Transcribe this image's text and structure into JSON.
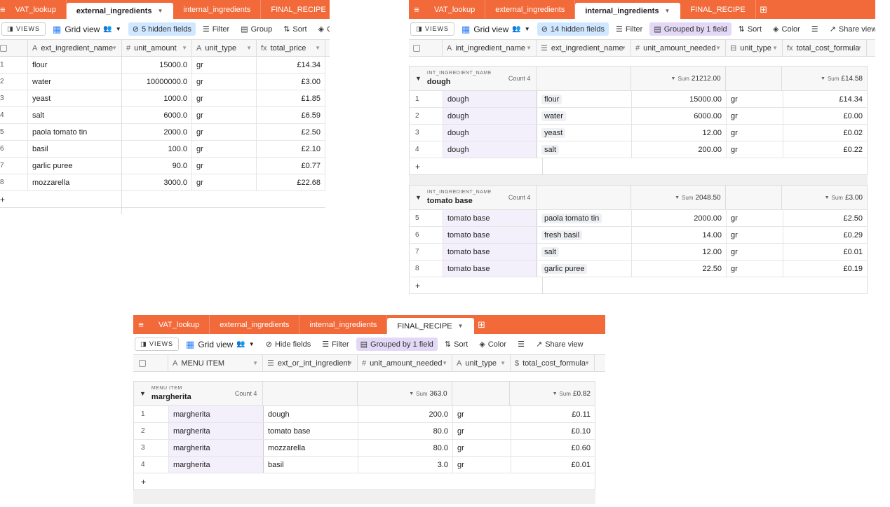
{
  "tabs": [
    "VAT_lookup",
    "external_ingredients",
    "internal_ingredients",
    "FINAL_RECIPE"
  ],
  "toolbar": {
    "views": "VIEWS",
    "grid_view": "Grid view",
    "filter": "Filter",
    "group": "Group",
    "sort": "Sort",
    "color": "Color",
    "share_view": "Share view",
    "hide_fields": "Hide fields",
    "grouped_by": "Grouped by 1 field"
  },
  "external": {
    "hidden_fields": "5 hidden fields",
    "columns": [
      "ext_ingredient_name",
      "unit_amount",
      "unit_type",
      "total_price"
    ],
    "rows": [
      {
        "n": "1",
        "name": "flour",
        "amount": "15000.0",
        "type": "gr",
        "price": "£14.34"
      },
      {
        "n": "2",
        "name": "water",
        "amount": "10000000.0",
        "type": "gr",
        "price": "£3.00"
      },
      {
        "n": "3",
        "name": "yeast",
        "amount": "1000.0",
        "type": "gr",
        "price": "£1.85"
      },
      {
        "n": "4",
        "name": "salt",
        "amount": "6000.0",
        "type": "gr",
        "price": "£6.59"
      },
      {
        "n": "5",
        "name": "paola tomato tin",
        "amount": "2000.0",
        "type": "gr",
        "price": "£2.50"
      },
      {
        "n": "6",
        "name": " basil",
        "amount": "100.0",
        "type": "gr",
        "price": "£2.10"
      },
      {
        "n": "7",
        "name": "garlic puree",
        "amount": "90.0",
        "type": "gr",
        "price": "£0.77"
      },
      {
        "n": "8",
        "name": "mozzarella",
        "amount": "3000.0",
        "type": "gr",
        "price": "£22.68"
      }
    ]
  },
  "internal": {
    "hidden_fields": "14 hidden fields",
    "columns": [
      "int_ingredient_name",
      "ext_ingredient_name",
      "unit_amount_needed",
      "unit_type",
      "total_cost_formula"
    ],
    "group_label": "INT_INGREDIENT_NAME",
    "groups": [
      {
        "name": "dough",
        "count": "Count 4",
        "sum_amount": "21212.00",
        "sum_cost": "£14.58",
        "rows": [
          {
            "n": "1",
            "int": "dough",
            "ext": "flour",
            "amount": "15000.00",
            "type": "gr",
            "cost": "£14.34"
          },
          {
            "n": "2",
            "int": "dough",
            "ext": "water",
            "amount": "6000.00",
            "type": "gr",
            "cost": "£0.00"
          },
          {
            "n": "3",
            "int": "dough",
            "ext": "yeast",
            "amount": "12.00",
            "type": "gr",
            "cost": "£0.02"
          },
          {
            "n": "4",
            "int": "dough",
            "ext": "salt",
            "amount": "200.00",
            "type": "gr",
            "cost": "£0.22"
          }
        ]
      },
      {
        "name": "tomato base",
        "count": "Count 4",
        "sum_amount": "2048.50",
        "sum_cost": "£3.00",
        "rows": [
          {
            "n": "5",
            "int": "tomato base",
            "ext": "paola tomato tin",
            "amount": "2000.00",
            "type": "gr",
            "cost": "£2.50"
          },
          {
            "n": "6",
            "int": "tomato base",
            "ext": "fresh basil",
            "amount": "14.00",
            "type": "gr",
            "cost": "£0.29"
          },
          {
            "n": "7",
            "int": "tomato base",
            "ext": "salt",
            "amount": "12.00",
            "type": "gr",
            "cost": "£0.01"
          },
          {
            "n": "8",
            "int": "tomato base",
            "ext": "garlic puree",
            "amount": "22.50",
            "type": "gr",
            "cost": "£0.19"
          }
        ]
      }
    ]
  },
  "final": {
    "columns": [
      "MENU ITEM",
      "ext_or_int_ingredient",
      "unit_amount_needed",
      "unit_type",
      "total_cost_formula"
    ],
    "group_label": "MENU ITEM",
    "group": {
      "name": "margherita",
      "count": "Count 4",
      "sum_amount": "363.0",
      "sum_cost": "£0.82"
    },
    "rows": [
      {
        "n": "1",
        "item": "margherita",
        "ing": "dough",
        "amount": "200.0",
        "type": "gr",
        "cost": "£0.11"
      },
      {
        "n": "2",
        "item": "margherita",
        "ing": "tomato base",
        "amount": "80.0",
        "type": "gr",
        "cost": "£0.10"
      },
      {
        "n": "3",
        "item": "margherita",
        "ing": "mozzarella",
        "amount": "80.0",
        "type": "gr",
        "cost": "£0.60"
      },
      {
        "n": "4",
        "item": "margherita",
        "ing": "basil",
        "amount": "3.0",
        "type": "gr",
        "cost": "£0.01"
      }
    ]
  },
  "sum_label": "Sum",
  "add_symbol": "+"
}
